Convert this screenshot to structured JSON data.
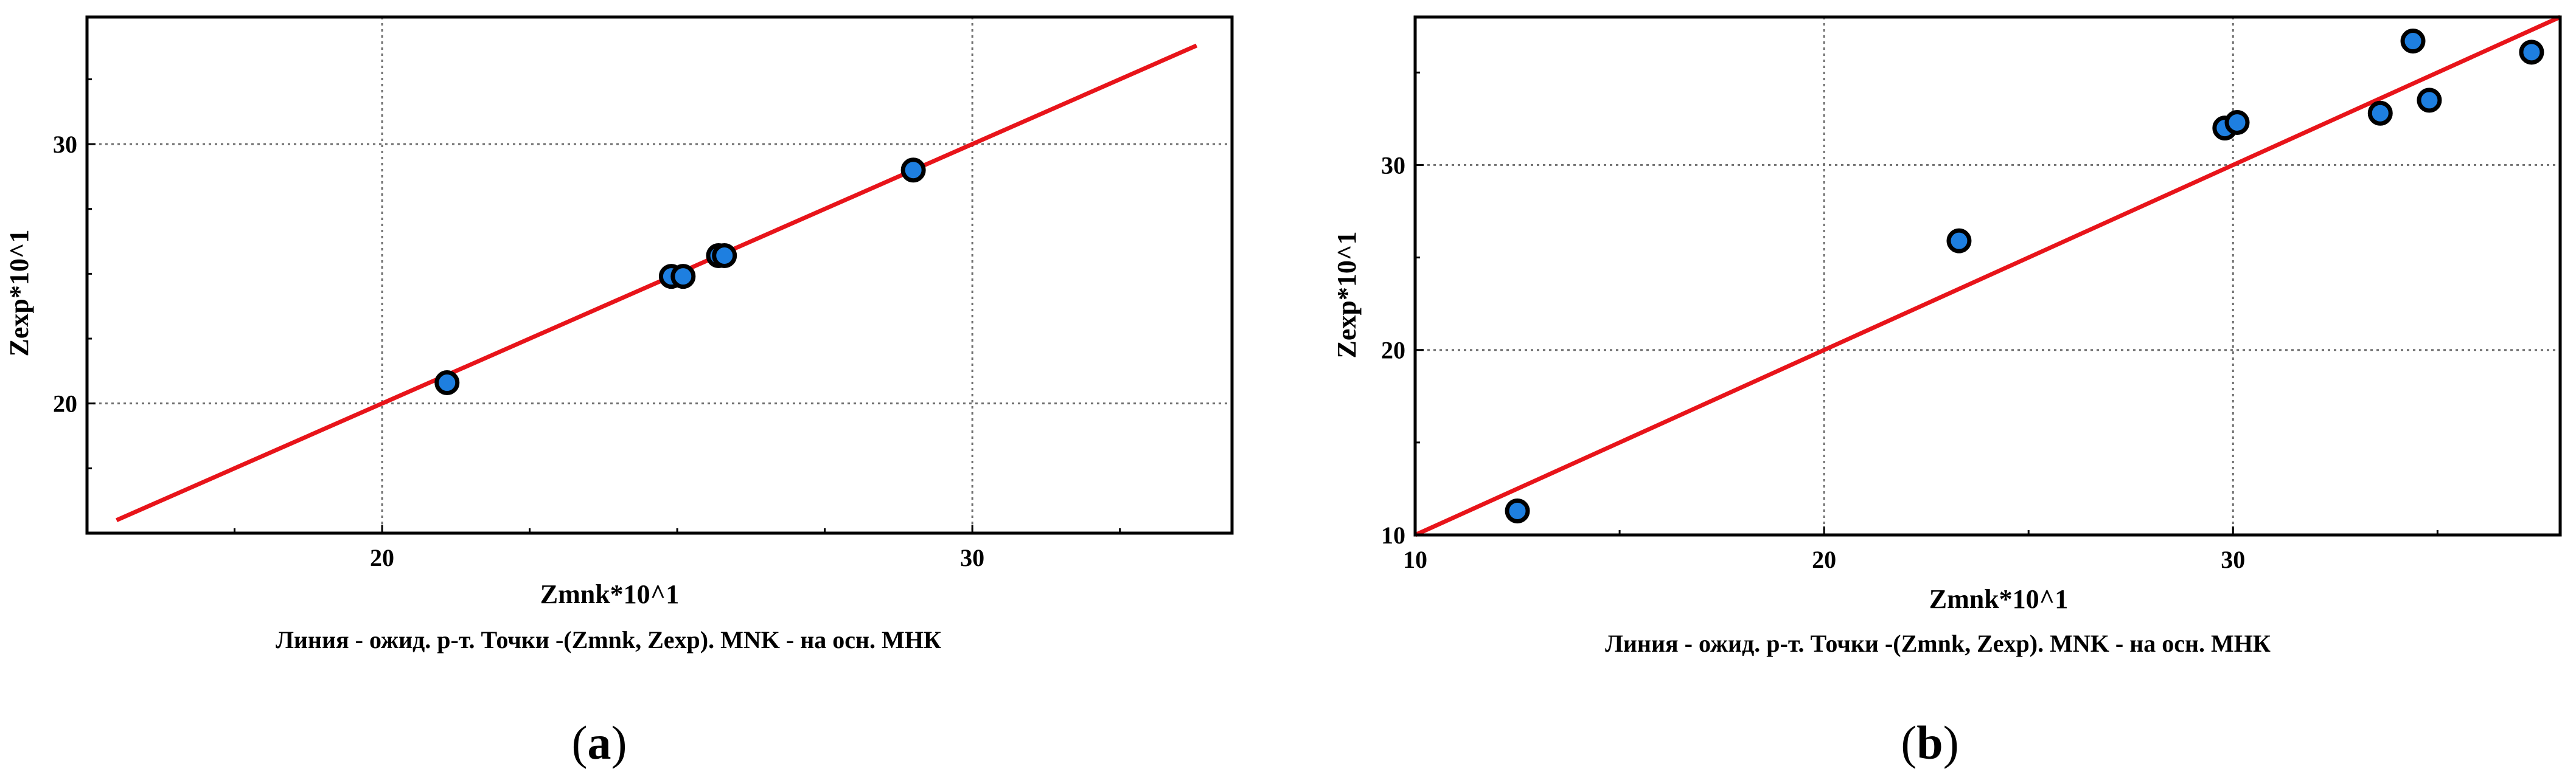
{
  "chart_data": [
    {
      "type": "scatter",
      "panel_label": "a",
      "xlabel": "Zmnk*10^1",
      "ylabel": "Zexp*10^1",
      "caption": "Линия - ожид. р-т. Точки -(Zmnk, Zexp).   MNK - на осн. МНК",
      "xlim": [
        15,
        34.4
      ],
      "ylim": [
        15,
        34.9
      ],
      "x_ticks": [
        20,
        30
      ],
      "y_ticks": [
        20,
        30
      ],
      "grid": true,
      "line": {
        "x": [
          15.5,
          33.8
        ],
        "y": [
          15.5,
          33.8
        ],
        "color": "#e8141a"
      },
      "series": [
        {
          "points": [
            [
              21.1,
              20.8
            ],
            [
              24.9,
              24.9
            ],
            [
              25.1,
              24.9
            ],
            [
              25.7,
              25.7
            ],
            [
              25.8,
              25.7
            ],
            [
              29.0,
              29.0
            ]
          ]
        }
      ],
      "colors": {
        "points": "#1e7fe0",
        "line": "#e8141a"
      }
    },
    {
      "type": "scatter",
      "panel_label": "b",
      "xlabel": "Zmnk*10^1",
      "ylabel": "Zexp*10^1",
      "caption": "Линия - ожид. р-т. Точки -(Zmnk, Zexp).   MNK - на осн. МНК",
      "xlim": [
        10,
        38
      ],
      "ylim": [
        10,
        38
      ],
      "x_ticks": [
        10,
        20,
        30
      ],
      "y_ticks": [
        10,
        20,
        30
      ],
      "grid": true,
      "line": {
        "x": [
          10,
          38
        ],
        "y": [
          10,
          38
        ],
        "color": "#e8141a"
      },
      "series": [
        {
          "points": [
            [
              12.5,
              11.3
            ],
            [
              23.3,
              25.9
            ],
            [
              29.8,
              32.0
            ],
            [
              30.1,
              32.3
            ],
            [
              33.6,
              32.8
            ],
            [
              34.4,
              36.7
            ],
            [
              34.8,
              33.5
            ],
            [
              37.3,
              36.1
            ]
          ]
        }
      ],
      "colors": {
        "points": "#1e7fe0",
        "line": "#e8141a"
      }
    }
  ]
}
